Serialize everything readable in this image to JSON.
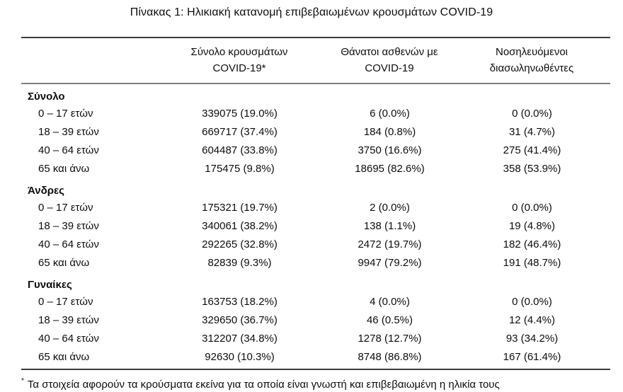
{
  "title": "Πίνακας 1: Ηλικιακή κατανομή επιβεβαιωμένων κρουσμάτων COVID-19",
  "colors": {
    "text": "#0d0d0d",
    "rule_dark": "#3c3c3c",
    "rule_gray": "#7f7f7f"
  },
  "table": {
    "columns": [
      {
        "line1": "Σύνολο κρουσμάτων",
        "line2": "COVID-19*"
      },
      {
        "line1": "Θάνατοι ασθενών με",
        "line2": "COVID-19"
      },
      {
        "line1": "Νοσηλευόμενοι",
        "line2": "διασωληνωθέντες"
      }
    ],
    "sections": [
      {
        "label": "Σύνολο",
        "rows": [
          {
            "age": "0 – 17 ετών",
            "cases": "339075 (19.0%)",
            "deaths": "6 (0.0%)",
            "intubated": "0 (0.0%)"
          },
          {
            "age": "18 – 39 ετών",
            "cases": "669717 (37.4%)",
            "deaths": "184 (0.8%)",
            "intubated": "31 (4.7%)"
          },
          {
            "age": "40 – 64 ετών",
            "cases": "604487 (33.8%)",
            "deaths": "3750 (16.6%)",
            "intubated": "275 (41.4%)"
          },
          {
            "age": "65 και άνω",
            "cases": "175475 (9.8%)",
            "deaths": "18695 (82.6%)",
            "intubated": "358 (53.9%)"
          }
        ]
      },
      {
        "label": "Άνδρες",
        "rows": [
          {
            "age": "0 – 17 ετών",
            "cases": "175321 (19.7%)",
            "deaths": "2 (0.0%)",
            "intubated": "0 (0.0%)"
          },
          {
            "age": "18 – 39 ετών",
            "cases": "340061 (38.2%)",
            "deaths": "138 (1.1%)",
            "intubated": "19 (4.8%)"
          },
          {
            "age": "40 – 64 ετών",
            "cases": "292265 (32.8%)",
            "deaths": "2472 (19.7%)",
            "intubated": "182 (46.4%)"
          },
          {
            "age": "65 και άνω",
            "cases": "82839 (9.3%)",
            "deaths": "9947 (79.2%)",
            "intubated": "191 (48.7%)"
          }
        ]
      },
      {
        "label": "Γυναίκες",
        "rows": [
          {
            "age": "0 – 17 ετών",
            "cases": "163753 (18.2%)",
            "deaths": "4 (0.0%)",
            "intubated": "0 (0.0%)"
          },
          {
            "age": "18 – 39 ετών",
            "cases": "329650 (36.7%)",
            "deaths": "46 (0.5%)",
            "intubated": "12 (4.4%)"
          },
          {
            "age": "40 – 64 ετών",
            "cases": "312207 (34.8%)",
            "deaths": "1278 (12.7%)",
            "intubated": "93 (34.2%)"
          },
          {
            "age": "65 και άνω",
            "cases": "92630 (10.3%)",
            "deaths": "8748 (86.8%)",
            "intubated": "167 (61.4%)"
          }
        ]
      }
    ]
  },
  "footnote": {
    "marker": "*",
    "text": "Τα στοιχεία αφορούν τα κρούσματα εκείνα για τα οποία είναι γνωστή και επιβεβαιωμένη η ηλικία τους"
  }
}
